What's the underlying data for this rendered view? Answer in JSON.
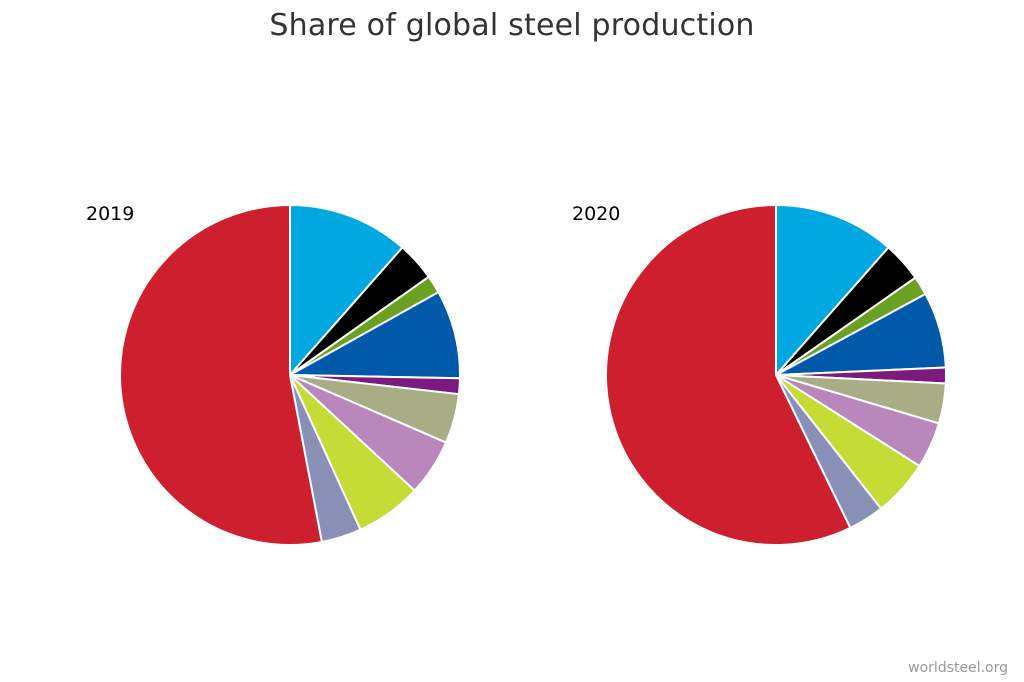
{
  "chart_data": [
    {
      "type": "pie",
      "title": "Share of global steel production",
      "label": "2019",
      "start_angle_deg": 0,
      "direction": "clockwise",
      "slices": [
        {
          "value": 11.5,
          "color": "#00a8e1"
        },
        {
          "value": 3.7,
          "color": "#000000"
        },
        {
          "value": 1.7,
          "color": "#6aa121"
        },
        {
          "value": 8.4,
          "color": "#005aa9"
        },
        {
          "value": 1.5,
          "color": "#7b1b7e"
        },
        {
          "value": 4.7,
          "color": "#a8ad85"
        },
        {
          "value": 5.4,
          "color": "#b987bc"
        },
        {
          "value": 6.3,
          "color": "#c5dc37"
        },
        {
          "value": 3.8,
          "color": "#8a8fb8"
        },
        {
          "value": 53.0,
          "color": "#cd1f2d"
        }
      ]
    },
    {
      "type": "pie",
      "label": "2020",
      "start_angle_deg": 0,
      "direction": "clockwise",
      "slices": [
        {
          "value": 11.5,
          "color": "#00a8e1"
        },
        {
          "value": 3.8,
          "color": "#000000"
        },
        {
          "value": 1.8,
          "color": "#6aa121"
        },
        {
          "value": 7.2,
          "color": "#005aa9"
        },
        {
          "value": 1.5,
          "color": "#7b1b7e"
        },
        {
          "value": 3.8,
          "color": "#a8ad85"
        },
        {
          "value": 4.4,
          "color": "#b987bc"
        },
        {
          "value": 5.4,
          "color": "#c5dc37"
        },
        {
          "value": 3.4,
          "color": "#8a8fb8"
        },
        {
          "value": 57.2,
          "color": "#cd1f2d"
        }
      ]
    }
  ],
  "credit": "worldsteel.org"
}
